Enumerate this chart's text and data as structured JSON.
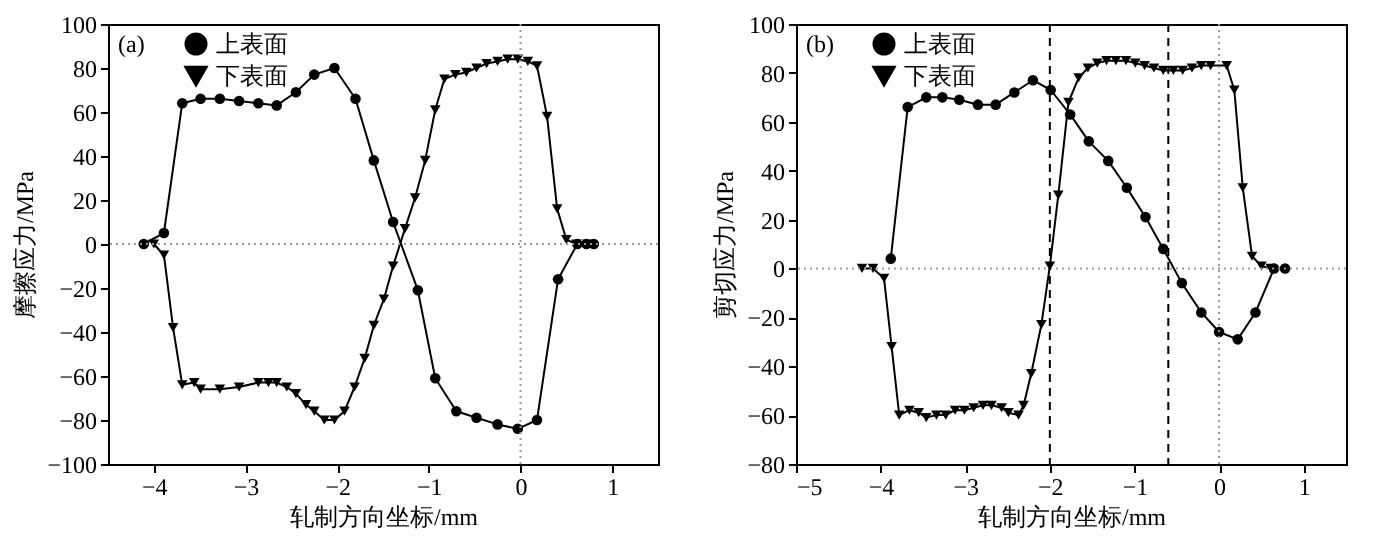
{
  "chart_data": [
    {
      "type": "line",
      "annotations": [
        "(a)"
      ],
      "xlabel": "轧制方向坐标/mm",
      "ylabel": "摩擦应力/MPa",
      "xlim": [
        -4.5,
        1.5
      ],
      "xticks": [
        -4,
        -3,
        -2,
        -1,
        0,
        1
      ],
      "ylim": [
        -100,
        100
      ],
      "yticks": [
        -100,
        -80,
        -60,
        -40,
        -20,
        0,
        20,
        40,
        60,
        80,
        100
      ],
      "legend": "top left",
      "ref_lines": [
        {
          "axis": "y",
          "value": 0,
          "line_style": "dotted",
          "color": "#999999"
        },
        {
          "axis": "x",
          "value": 0,
          "line_style": "dotted",
          "color": "#999999"
        }
      ],
      "series": [
        {
          "name": "上表面",
          "color": "#000000",
          "marker": "circle",
          "x": [
            -4.11,
            -3.89,
            -3.69,
            -3.49,
            -3.28,
            -3.07,
            -2.86,
            -2.66,
            -2.45,
            -2.25,
            -2.03,
            -1.8,
            -1.6,
            -1.39,
            -1.12,
            -0.93,
            -0.7,
            -0.48,
            -0.25,
            -0.03,
            0.18,
            0.41,
            0.62,
            0.72,
            0.8
          ],
          "values": [
            0,
            5,
            64,
            66,
            66,
            65,
            64,
            63,
            69,
            77,
            80,
            66,
            38,
            10,
            -21,
            -61,
            -76,
            -79,
            -82,
            -84,
            -80,
            -16,
            0,
            0,
            0
          ]
        },
        {
          "name": "下表面",
          "color": "#000000",
          "marker": "triangle",
          "x": [
            -4.0,
            -3.89,
            -3.79,
            -3.69,
            -3.56,
            -3.49,
            -3.28,
            -3.07,
            -2.86,
            -2.75,
            -2.66,
            -2.55,
            -2.45,
            -2.34,
            -2.25,
            -2.14,
            -2.03,
            -1.92,
            -1.81,
            -1.7,
            -1.6,
            -1.49,
            -1.39,
            -1.26,
            -1.15,
            -1.04,
            -0.93,
            -0.83,
            -0.71,
            -0.59,
            -0.48,
            -0.37,
            -0.25,
            -0.14,
            -0.03,
            0.08,
            0.18,
            0.29,
            0.4,
            0.5,
            0.61,
            0.73
          ],
          "values": [
            0,
            -5,
            -38,
            -64,
            -63,
            -66,
            -66,
            -65,
            -63,
            -63,
            -63,
            -65,
            -68,
            -73,
            -76,
            -80,
            -80,
            -76,
            -65,
            -52,
            -37,
            -25,
            -10,
            7,
            21,
            38,
            61,
            75,
            77,
            78,
            80,
            82,
            83,
            84,
            84,
            83,
            81,
            58,
            16,
            2,
            0,
            0
          ]
        }
      ]
    },
    {
      "type": "line",
      "annotations": [
        "(b)"
      ],
      "xlabel": "轧制方向坐标/mm",
      "ylabel": "剪切应力/MPa",
      "xlim": [
        -5,
        1.5
      ],
      "xticks": [
        -5,
        -4,
        -3,
        -2,
        -1,
        0,
        1
      ],
      "ylim": [
        -80,
        100
      ],
      "yticks": [
        -80,
        -60,
        -40,
        -20,
        0,
        20,
        40,
        60,
        80,
        100
      ],
      "legend": "top left",
      "ref_lines": [
        {
          "axis": "y",
          "value": 0,
          "line_style": "dotted",
          "color": "#999999"
        },
        {
          "axis": "x",
          "value": 0,
          "line_style": "dotted",
          "color": "#999999"
        },
        {
          "axis": "x",
          "value": -2,
          "line_style": "dashed",
          "color": "#000000"
        },
        {
          "axis": "x",
          "value": -0.6,
          "line_style": "dashed",
          "color": "#000000"
        }
      ],
      "series": [
        {
          "name": "上表面",
          "color": "#000000",
          "marker": "circle",
          "x": [
            -3.88,
            -3.68,
            -3.46,
            -3.27,
            -3.07,
            -2.85,
            -2.64,
            -2.42,
            -2.2,
            -1.99,
            -1.76,
            -1.54,
            -1.31,
            -1.09,
            -0.87,
            -0.66,
            -0.44,
            -0.21,
            0,
            0.22,
            0.43,
            0.65,
            0.78
          ],
          "values": [
            4,
            66,
            70,
            70,
            69,
            67,
            67,
            72,
            77,
            73,
            63,
            52,
            44,
            33,
            21,
            8,
            -6,
            -18,
            -26,
            -29,
            -18,
            0,
            0
          ]
        },
        {
          "name": "下表面",
          "color": "#000000",
          "marker": "triangle",
          "x": [
            -4.22,
            -4.09,
            -3.96,
            -3.87,
            -3.78,
            -3.66,
            -3.55,
            -3.46,
            -3.34,
            -3.23,
            -3.12,
            -3.01,
            -2.9,
            -2.79,
            -2.69,
            -2.57,
            -2.49,
            -2.37,
            -2.31,
            -2.22,
            -2.1,
            -2.0,
            -1.9,
            -1.78,
            -1.66,
            -1.55,
            -1.44,
            -1.33,
            -1.22,
            -1.1,
            -0.99,
            -0.88,
            -0.77,
            -0.66,
            -0.54,
            -0.43,
            -0.32,
            -0.21,
            -0.1,
            0.09,
            0.18,
            0.28,
            0.39,
            0.5,
            0.61
          ],
          "values": [
            0,
            0,
            -4,
            -32,
            -60,
            -58,
            -59,
            -61,
            -60,
            -60,
            -58,
            -58,
            -57,
            -56,
            -56,
            -57,
            -59,
            -60,
            -56,
            -43,
            -23,
            1,
            30,
            68,
            78,
            82,
            84,
            85,
            85,
            85,
            84,
            83,
            82,
            81,
            81,
            81,
            82,
            83,
            83,
            83,
            73,
            33,
            5,
            1,
            0
          ]
        }
      ]
    }
  ]
}
